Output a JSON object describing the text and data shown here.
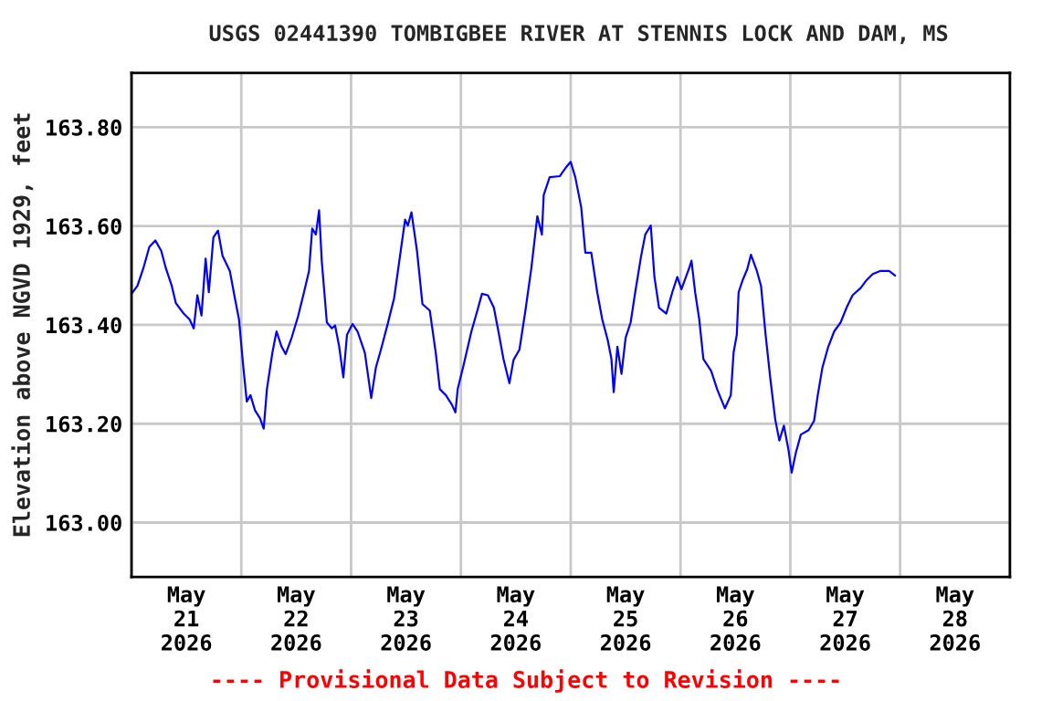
{
  "chart_data": {
    "type": "line",
    "title": "USGS 02441390 TOMBIGBEE RIVER AT STENNIS LOCK AND DAM, MS",
    "ylabel": "Elevation above NGVD 1929, feet",
    "annotations": [
      "---- Provisional Data Subject to Revision ----"
    ],
    "xlim": [
      "2026-05-21T00:00",
      "2026-05-29T00:00"
    ],
    "xticks": [
      {
        "value": "2026-05-21T00:00",
        "label": null
      },
      {
        "value": "2026-05-21T12:00",
        "label": "May\n21\n2026"
      },
      {
        "value": "2026-05-22T00:00",
        "label": null
      },
      {
        "value": "2026-05-22T12:00",
        "label": "May\n22\n2026"
      },
      {
        "value": "2026-05-23T00:00",
        "label": null
      },
      {
        "value": "2026-05-23T12:00",
        "label": "May\n23\n2026"
      },
      {
        "value": "2026-05-24T00:00",
        "label": null
      },
      {
        "value": "2026-05-24T12:00",
        "label": "May\n24\n2026"
      },
      {
        "value": "2026-05-25T00:00",
        "label": null
      },
      {
        "value": "2026-05-25T12:00",
        "label": "May\n25\n2026"
      },
      {
        "value": "2026-05-26T00:00",
        "label": null
      },
      {
        "value": "2026-05-26T12:00",
        "label": "May\n26\n2026"
      },
      {
        "value": "2026-05-27T00:00",
        "label": null
      },
      {
        "value": "2026-05-27T12:00",
        "label": "May\n27\n2026"
      },
      {
        "value": "2026-05-28T00:00",
        "label": null
      },
      {
        "value": "2026-05-28T12:00",
        "label": "May\n28\n2026"
      },
      {
        "value": "2026-05-29T00:00",
        "label": null
      }
    ],
    "ylim": [
      162.89,
      163.91
    ],
    "yticks": [
      {
        "value": 163.0,
        "label": "163.00"
      },
      {
        "value": 163.2,
        "label": "163.20"
      },
      {
        "value": 163.4,
        "label": "163.40"
      },
      {
        "value": 163.6,
        "label": "163.60"
      },
      {
        "value": 163.8,
        "label": "163.80"
      }
    ],
    "grid": true,
    "legend": false,
    "series": [
      {
        "color": "#0000ff",
        "x": [
          "2026-05-21T00:00",
          "2026-05-21T01:18",
          "2026-05-21T02:36",
          "2026-05-21T03:54",
          "2026-05-21T05:12",
          "2026-05-21T06:30",
          "2026-05-21T07:30",
          "2026-05-21T08:48",
          "2026-05-21T09:42",
          "2026-05-21T11:24",
          "2026-05-21T12:42",
          "2026-05-21T13:36",
          "2026-05-21T14:24",
          "2026-05-21T15:18",
          "2026-05-21T16:12",
          "2026-05-21T16:54",
          "2026-05-21T17:54",
          "2026-05-21T18:54",
          "2026-05-21T19:54",
          "2026-05-21T21:30",
          "2026-05-21T22:36",
          "2026-05-21T23:30",
          "2026-05-22T00:24",
          "2026-05-22T01:12",
          "2026-05-22T02:00",
          "2026-05-22T03:00",
          "2026-05-22T04:06",
          "2026-05-22T04:54",
          "2026-05-22T05:36",
          "2026-05-22T06:48",
          "2026-05-22T07:42",
          "2026-05-22T08:48",
          "2026-05-22T09:42",
          "2026-05-22T11:00",
          "2026-05-22T12:24",
          "2026-05-22T13:42",
          "2026-05-22T14:48",
          "2026-05-22T15:30",
          "2026-05-22T16:18",
          "2026-05-22T17:00",
          "2026-05-22T17:36",
          "2026-05-22T18:42",
          "2026-05-22T19:48",
          "2026-05-22T20:30",
          "2026-05-22T21:24",
          "2026-05-22T22:18",
          "2026-05-22T23:06",
          "2026-05-23T00:18",
          "2026-05-23T01:24",
          "2026-05-23T03:00",
          "2026-05-23T04:24",
          "2026-05-23T05:24",
          "2026-05-23T06:42",
          "2026-05-23T08:00",
          "2026-05-23T09:24",
          "2026-05-23T10:42",
          "2026-05-23T11:48",
          "2026-05-23T12:24",
          "2026-05-23T13:12",
          "2026-05-23T14:24",
          "2026-05-23T15:36",
          "2026-05-23T17:12",
          "2026-05-23T18:30",
          "2026-05-23T19:24",
          "2026-05-23T20:42",
          "2026-05-23T22:00",
          "2026-05-23T22:48",
          "2026-05-23T23:18",
          "2026-05-24T00:36",
          "2026-05-24T02:18",
          "2026-05-24T03:36",
          "2026-05-24T04:36",
          "2026-05-24T05:54",
          "2026-05-24T07:12",
          "2026-05-24T08:12",
          "2026-05-24T09:18",
          "2026-05-24T10:36",
          "2026-05-24T11:30",
          "2026-05-24T12:48",
          "2026-05-24T14:06",
          "2026-05-24T15:24",
          "2026-05-24T16:42",
          "2026-05-24T17:42",
          "2026-05-24T18:06",
          "2026-05-24T19:24",
          "2026-05-24T21:36",
          "2026-05-24T22:54",
          "2026-05-25T00:00",
          "2026-05-25T01:00",
          "2026-05-25T02:18",
          "2026-05-25T03:12",
          "2026-05-25T04:30",
          "2026-05-25T05:48",
          "2026-05-25T06:54",
          "2026-05-25T08:06",
          "2026-05-25T08:54",
          "2026-05-25T09:24",
          "2026-05-25T10:12",
          "2026-05-25T11:06",
          "2026-05-25T12:00",
          "2026-05-25T13:06",
          "2026-05-25T14:06",
          "2026-05-25T15:24",
          "2026-05-25T16:18",
          "2026-05-25T17:30",
          "2026-05-25T18:18",
          "2026-05-25T19:18",
          "2026-05-25T20:54",
          "2026-05-25T22:12",
          "2026-05-25T23:18",
          "2026-05-26T00:12",
          "2026-05-26T01:54",
          "2026-05-26T02:24",
          "2026-05-26T03:12",
          "2026-05-26T04:06",
          "2026-05-26T05:00",
          "2026-05-26T06:42",
          "2026-05-26T08:00",
          "2026-05-26T09:42",
          "2026-05-26T11:00",
          "2026-05-26T11:36",
          "2026-05-26T12:18",
          "2026-05-26T12:42",
          "2026-05-26T13:36",
          "2026-05-26T14:36",
          "2026-05-26T15:24",
          "2026-05-26T16:42",
          "2026-05-26T17:36",
          "2026-05-26T18:36",
          "2026-05-26T19:36",
          "2026-05-26T20:42",
          "2026-05-26T21:36",
          "2026-05-26T22:36",
          "2026-05-26T23:36",
          "2026-05-27T00:18",
          "2026-05-27T01:12",
          "2026-05-27T02:18",
          "2026-05-27T04:00",
          "2026-05-27T05:12",
          "2026-05-27T06:00",
          "2026-05-27T07:00",
          "2026-05-27T08:18",
          "2026-05-27T09:36",
          "2026-05-27T11:00",
          "2026-05-27T12:18",
          "2026-05-27T13:36",
          "2026-05-27T15:24",
          "2026-05-27T16:42",
          "2026-05-27T18:00",
          "2026-05-27T19:36",
          "2026-05-27T21:36",
          "2026-05-27T22:54"
        ],
        "values": [
          163.463,
          163.479,
          163.515,
          163.558,
          163.571,
          163.55,
          163.515,
          163.479,
          163.444,
          163.423,
          163.411,
          163.393,
          163.46,
          163.419,
          163.534,
          163.466,
          163.577,
          163.591,
          163.54,
          163.509,
          163.454,
          163.411,
          163.319,
          163.245,
          163.258,
          163.227,
          163.211,
          163.19,
          163.27,
          163.344,
          163.387,
          163.356,
          163.341,
          163.374,
          163.417,
          163.466,
          163.509,
          163.595,
          163.583,
          163.632,
          163.528,
          163.405,
          163.393,
          163.399,
          163.356,
          163.294,
          163.38,
          163.402,
          163.387,
          163.344,
          163.252,
          163.313,
          163.356,
          163.402,
          163.454,
          163.54,
          163.613,
          163.601,
          163.628,
          163.55,
          163.442,
          163.429,
          163.344,
          163.27,
          163.258,
          163.239,
          163.223,
          163.27,
          163.319,
          163.387,
          163.429,
          163.463,
          163.46,
          163.435,
          163.387,
          163.331,
          163.282,
          163.329,
          163.35,
          163.429,
          163.515,
          163.62,
          163.583,
          163.663,
          163.699,
          163.701,
          163.718,
          163.73,
          163.699,
          163.638,
          163.546,
          163.546,
          163.466,
          163.411,
          163.369,
          163.331,
          163.264,
          163.356,
          163.301,
          163.374,
          163.405,
          163.466,
          163.54,
          163.583,
          163.601,
          163.497,
          163.435,
          163.423,
          163.466,
          163.497,
          163.472,
          163.515,
          163.53,
          163.466,
          163.411,
          163.331,
          163.307,
          163.27,
          163.231,
          163.258,
          163.344,
          163.38,
          163.466,
          163.491,
          163.513,
          163.542,
          163.509,
          163.479,
          163.38,
          163.294,
          163.209,
          163.166,
          163.196,
          163.147,
          163.101,
          163.141,
          163.178,
          163.187,
          163.206,
          163.258,
          163.313,
          163.356,
          163.387,
          163.405,
          163.435,
          163.46,
          163.475,
          163.491,
          163.503,
          163.509,
          163.509,
          163.5
        ]
      }
    ]
  }
}
